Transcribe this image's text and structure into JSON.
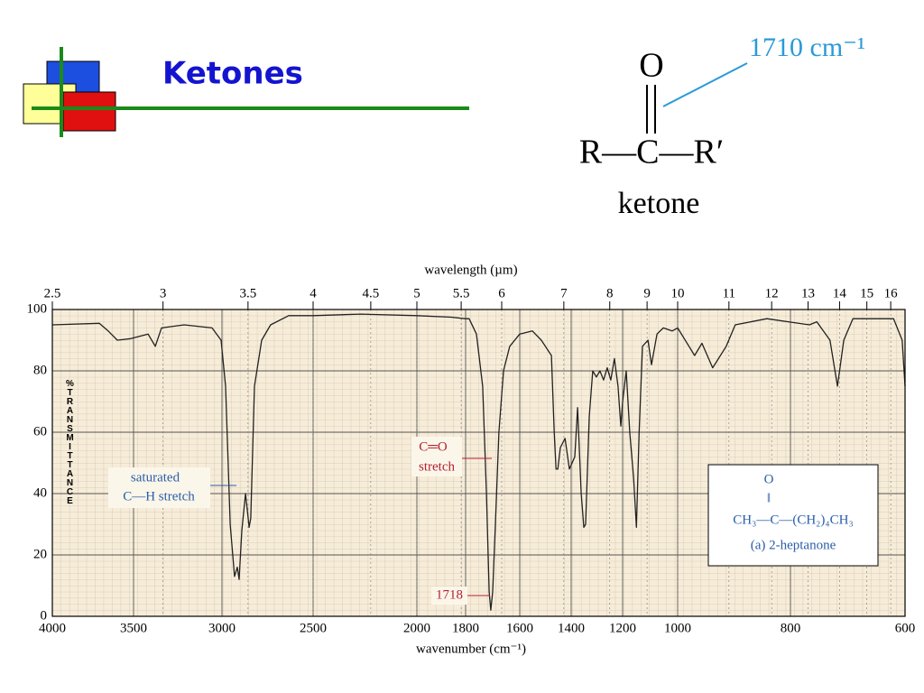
{
  "header": {
    "title": "Ketones"
  },
  "structure": {
    "frequency": "1710 cm⁻¹",
    "oxygen": "O",
    "formula": "R—C—R′",
    "name": "ketone"
  },
  "chart_data": {
    "type": "line",
    "color": "#222",
    "xlabel": "wavenumber (cm⁻¹)",
    "x2label": "wavelength (µm)",
    "ylabel": "%TRANSMITTANCE",
    "xlim": [
      4000,
      600
    ],
    "ylim": [
      0,
      100
    ],
    "xticks": [
      4000,
      3500,
      3000,
      2500,
      2000,
      1800,
      1600,
      1400,
      1200,
      1000,
      800,
      600
    ],
    "x2ticks": [
      2.5,
      3,
      3.5,
      4,
      4.5,
      5,
      5.5,
      6,
      7,
      8,
      9,
      10,
      11,
      12,
      13,
      14,
      15,
      16
    ],
    "yticks": [
      0,
      20,
      40,
      60,
      80,
      100
    ],
    "grid": true,
    "x": [
      4000,
      3711,
      3656,
      3600,
      3517,
      3418,
      3377,
      3342,
      3214,
      3056,
      3005,
      2980,
      2955,
      2931,
      2916,
      2906,
      2891,
      2871,
      2851,
      2842,
      2822,
      2782,
      2733,
      2634,
      2500,
      2270,
      2000,
      1859,
      1800,
      1787,
      1760,
      1737,
      1723,
      1713,
      1707,
      1700,
      1690,
      1677,
      1660,
      1637,
      1600,
      1551,
      1516,
      1477,
      1466,
      1459,
      1452,
      1442,
      1424,
      1407,
      1386,
      1375,
      1361,
      1351,
      1344,
      1330,
      1316,
      1302,
      1288,
      1274,
      1260,
      1246,
      1232,
      1218,
      1207,
      1200,
      1187,
      1174,
      1160,
      1150,
      1140,
      1128,
      1108,
      1095,
      1075,
      1052,
      1020,
      1000,
      970,
      957,
      938,
      914,
      898,
      842,
      767,
      754,
      731,
      718,
      707,
      691,
      620,
      605,
      600
    ],
    "values": [
      95,
      95.5,
      93,
      90,
      90.5,
      92,
      88,
      94,
      95,
      94,
      90,
      75,
      30,
      13,
      16,
      12,
      28,
      40,
      29,
      32,
      75,
      90,
      95,
      98,
      98,
      98.5,
      98,
      97.5,
      97,
      97,
      92,
      75,
      40,
      8,
      2,
      8,
      30,
      60,
      80,
      88,
      92,
      93,
      90,
      85,
      60,
      48,
      48,
      55,
      58,
      48,
      52,
      68,
      40,
      29,
      30,
      65,
      80,
      78,
      80,
      77,
      81,
      77,
      84,
      75,
      62,
      70,
      80,
      60,
      45,
      29,
      60,
      88,
      90,
      82,
      92,
      94,
      93,
      94,
      85,
      89,
      81,
      88,
      95,
      97,
      95,
      96,
      90,
      75,
      90,
      97,
      97,
      90,
      75
    ],
    "annotations": [
      "saturated",
      "C—H  stretch",
      "C═O",
      "stretch",
      "1718"
    ],
    "inset": {
      "oxygen": "O",
      "bond": "‖",
      "formula": "CH₃—C—(CH₂)₄CH₃",
      "caption": "(a) 2-heptanone"
    }
  }
}
